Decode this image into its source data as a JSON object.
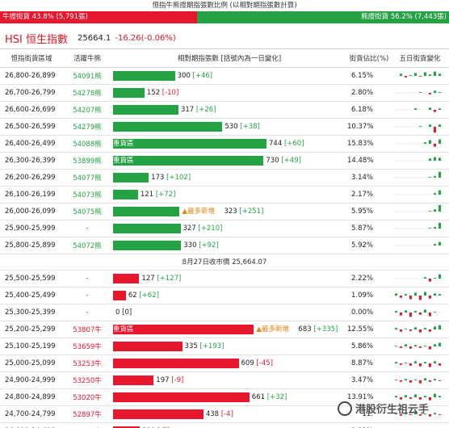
{
  "top": {
    "title": "恒指牛熊證期指張數比例 (以相對期指張數計算)",
    "bull_label": "牛證街貨 43.8% (5,791張)",
    "bull_pct": 43.8,
    "bear_label": "熊證街貨 56.2% (7,443張)",
    "bear_pct": 56.2
  },
  "header": {
    "index_name": "HSI 恒生指數",
    "price": "25664.1",
    "change": "-16.26(-0.06%)"
  },
  "columns": {
    "range": "恒指街貨區域",
    "code": "活躍牛熊",
    "relative": "相對期指張數 [括號內為一日變化]",
    "pct": "街貨佔比(%)",
    "five_day": "五日街貨變化"
  },
  "close_label": "8月27日收市價 25,664.07",
  "colors": {
    "bear": "#25a243",
    "bull": "#e6162d",
    "new": "#e8820c"
  },
  "bear_rows": [
    {
      "range": "26,800-26,899",
      "code": "54091熊",
      "value": 300,
      "value_label": "300",
      "change": "[+46]",
      "chg_sign": "pos",
      "pct": "6.15%",
      "spark": [
        0,
        0.3,
        -0.2,
        0.1,
        0.4,
        -0.1,
        0.5,
        0.2,
        0.6,
        0.3
      ]
    },
    {
      "range": "26,700-26,799",
      "code": "54278熊",
      "value": 152,
      "value_label": "152",
      "change": "[-10]",
      "chg_sign": "neg",
      "pct": "2.80%",
      "spark": [
        0,
        0,
        0,
        0,
        0,
        0.1,
        0,
        -0.2,
        0.3,
        0.1
      ]
    },
    {
      "range": "26,600-26,699",
      "code": "54207熊",
      "value": 317,
      "value_label": "317",
      "change": "[+26]",
      "chg_sign": "pos",
      "pct": "6.18%",
      "spark": [
        0,
        0,
        0,
        0,
        0.2,
        0,
        0,
        0.3,
        -0.3,
        0.2
      ]
    },
    {
      "range": "26,500-26,599",
      "code": "54279熊",
      "value": 530,
      "value_label": "530",
      "change": "[+38]",
      "chg_sign": "pos",
      "pct": "10.37%",
      "spark": [
        0,
        0,
        0,
        0,
        0,
        0.1,
        0,
        0.3,
        -0.8,
        0.3
      ]
    },
    {
      "range": "26,400-26,499",
      "code": "54088熊",
      "value": 744,
      "value_label": "744",
      "change": "[+60]",
      "chg_sign": "pos",
      "pct": "15.83%",
      "heavy": "重貨區",
      "spark": [
        0,
        0,
        0,
        0,
        0,
        0,
        0.2,
        0.5,
        -0.4,
        0.6
      ]
    },
    {
      "range": "26,300-26,399",
      "code": "53899熊",
      "value": 730,
      "value_label": "730",
      "change": "[+49]",
      "chg_sign": "pos",
      "pct": "14.48%",
      "heavy": "重貨區",
      "spark": [
        0,
        0,
        0,
        0,
        0,
        0,
        0,
        0.3,
        0.5,
        0.4
      ]
    },
    {
      "range": "26,200-26,299",
      "code": "54077熊",
      "value": 173,
      "value_label": "173",
      "change": "[+102]",
      "chg_sign": "pos",
      "pct": "3.14%",
      "spark": [
        0,
        0,
        0,
        0,
        0,
        0,
        0,
        0.1,
        0.2,
        0.8
      ]
    },
    {
      "range": "26,100-26,199",
      "code": "54073熊",
      "value": 121,
      "value_label": "121",
      "change": "[+72]",
      "chg_sign": "pos",
      "pct": "2.17%",
      "spark": [
        0,
        0,
        0,
        0,
        0,
        0,
        0,
        0,
        0.2,
        0.6
      ]
    },
    {
      "range": "26,000-26,099",
      "code": "54075熊",
      "value": 323,
      "value_label": "323",
      "change": "[+251]",
      "chg_sign": "pos",
      "pct": "5.95%",
      "most_new": "▲最多新增",
      "spark": [
        0,
        0,
        0,
        0,
        0,
        0,
        0,
        0.1,
        0.3,
        0.9
      ]
    },
    {
      "range": "25,900-25,999",
      "code": "-",
      "value": 327,
      "value_label": "327",
      "change": "[+210]",
      "chg_sign": "pos",
      "pct": "5.87%",
      "spark": [
        0,
        0,
        0,
        0,
        0,
        0,
        0,
        0.1,
        0.2,
        0.8
      ]
    },
    {
      "range": "25,800-25,899",
      "code": "54072熊",
      "value": 330,
      "value_label": "330",
      "change": "[+92]",
      "chg_sign": "pos",
      "pct": "5.92%",
      "spark": [
        0,
        0,
        0,
        0,
        0,
        0,
        0,
        0,
        0.2,
        0.5
      ]
    }
  ],
  "bull_rows": [
    {
      "range": "25,500-25,599",
      "code": "-",
      "value": 127,
      "value_label": "127",
      "change": "[+127]",
      "chg_sign": "pos",
      "pct": "2.22%",
      "spark": [
        0,
        0,
        0,
        0,
        0,
        0,
        0.2,
        -0.4,
        0.1,
        0.6
      ]
    },
    {
      "range": "25,400-25,499",
      "code": "-",
      "value": 62,
      "value_label": "62",
      "change": "[+62]",
      "chg_sign": "pos",
      "pct": "1.09%",
      "spark": [
        0.3,
        -0.3,
        0.2,
        -0.5,
        0.4,
        -0.6,
        0.5,
        -0.4,
        0.3,
        0.2
      ]
    },
    {
      "range": "25,300-25,399",
      "code": "-",
      "value": 0,
      "value_label": "0",
      "change": "[0]",
      "chg_sign": "none",
      "pct": "0.00%",
      "spark": [
        0.2,
        -0.4,
        0.3,
        -0.6,
        0.2,
        -0.3,
        0.4,
        -0.5,
        0.1,
        0
      ]
    },
    {
      "range": "25,200-25,299",
      "code": "53807牛",
      "value": 683,
      "value_label": "683",
      "change": "[+335]",
      "chg_sign": "pos",
      "pct": "12.55%",
      "heavy": "重貨區",
      "most_new": "▲最多新增",
      "spark": [
        0.2,
        -0.3,
        0.1,
        -0.2,
        0.3,
        -0.4,
        0.2,
        -0.3,
        0.4,
        0.6
      ]
    },
    {
      "range": "25,100-25,199",
      "code": "53659牛",
      "value": 335,
      "value_label": "335",
      "change": "[+193]",
      "chg_sign": "pos",
      "pct": "5.86%",
      "spark": [
        0.1,
        -0.2,
        0.3,
        -0.3,
        0.2,
        -0.2,
        0.1,
        -0.4,
        0.3,
        0.5
      ]
    },
    {
      "range": "25,000-25,099",
      "code": "53253牛",
      "value": 609,
      "value_label": "609",
      "change": "[-45]",
      "chg_sign": "neg",
      "pct": "8.87%",
      "spark": [
        0.2,
        -0.2,
        0.1,
        -0.3,
        0.3,
        -0.4,
        0.2,
        -0.5,
        0.3,
        -0.3
      ]
    },
    {
      "range": "24,900-24,999",
      "code": "53250牛",
      "value": 197,
      "value_label": "197",
      "change": "[-9]",
      "chg_sign": "neg",
      "pct": "3.47%",
      "spark": [
        0.1,
        -0.2,
        0.2,
        -0.3,
        0.1,
        -0.4,
        0.3,
        -0.2,
        0.2,
        -0.1
      ]
    },
    {
      "range": "24,800-24,899",
      "code": "53020牛",
      "value": 661,
      "value_label": "661",
      "change": "[+32]",
      "chg_sign": "pos",
      "pct": "13.91%",
      "spark": [
        0.2,
        -0.3,
        0.3,
        -0.2,
        0.4,
        -0.3,
        0.2,
        -0.4,
        0.5,
        0.2
      ]
    },
    {
      "range": "24,700-24,799",
      "code": "52897牛",
      "value": 438,
      "value_label": "438",
      "change": "[-4]",
      "chg_sign": "neg",
      "pct": "11.",
      "spark": [
        0.1,
        -0.2,
        0.2,
        -0.1,
        0.3,
        -0.2,
        0.1,
        -0.3,
        0.2,
        -0.1
      ]
    },
    {
      "range": "24,600-24,699",
      "code": "57067牛",
      "value": 129,
      "value_label": "129",
      "change": "[-7]",
      "chg_sign": "neg",
      "pct": "2.33%",
      "spark": [
        0.1,
        -0.1,
        0.2,
        -0.2,
        0.1,
        -0.1,
        0.2,
        -0.2,
        0.3,
        -0.1
      ]
    }
  ],
  "watermark": "港股衍生祖云手"
}
